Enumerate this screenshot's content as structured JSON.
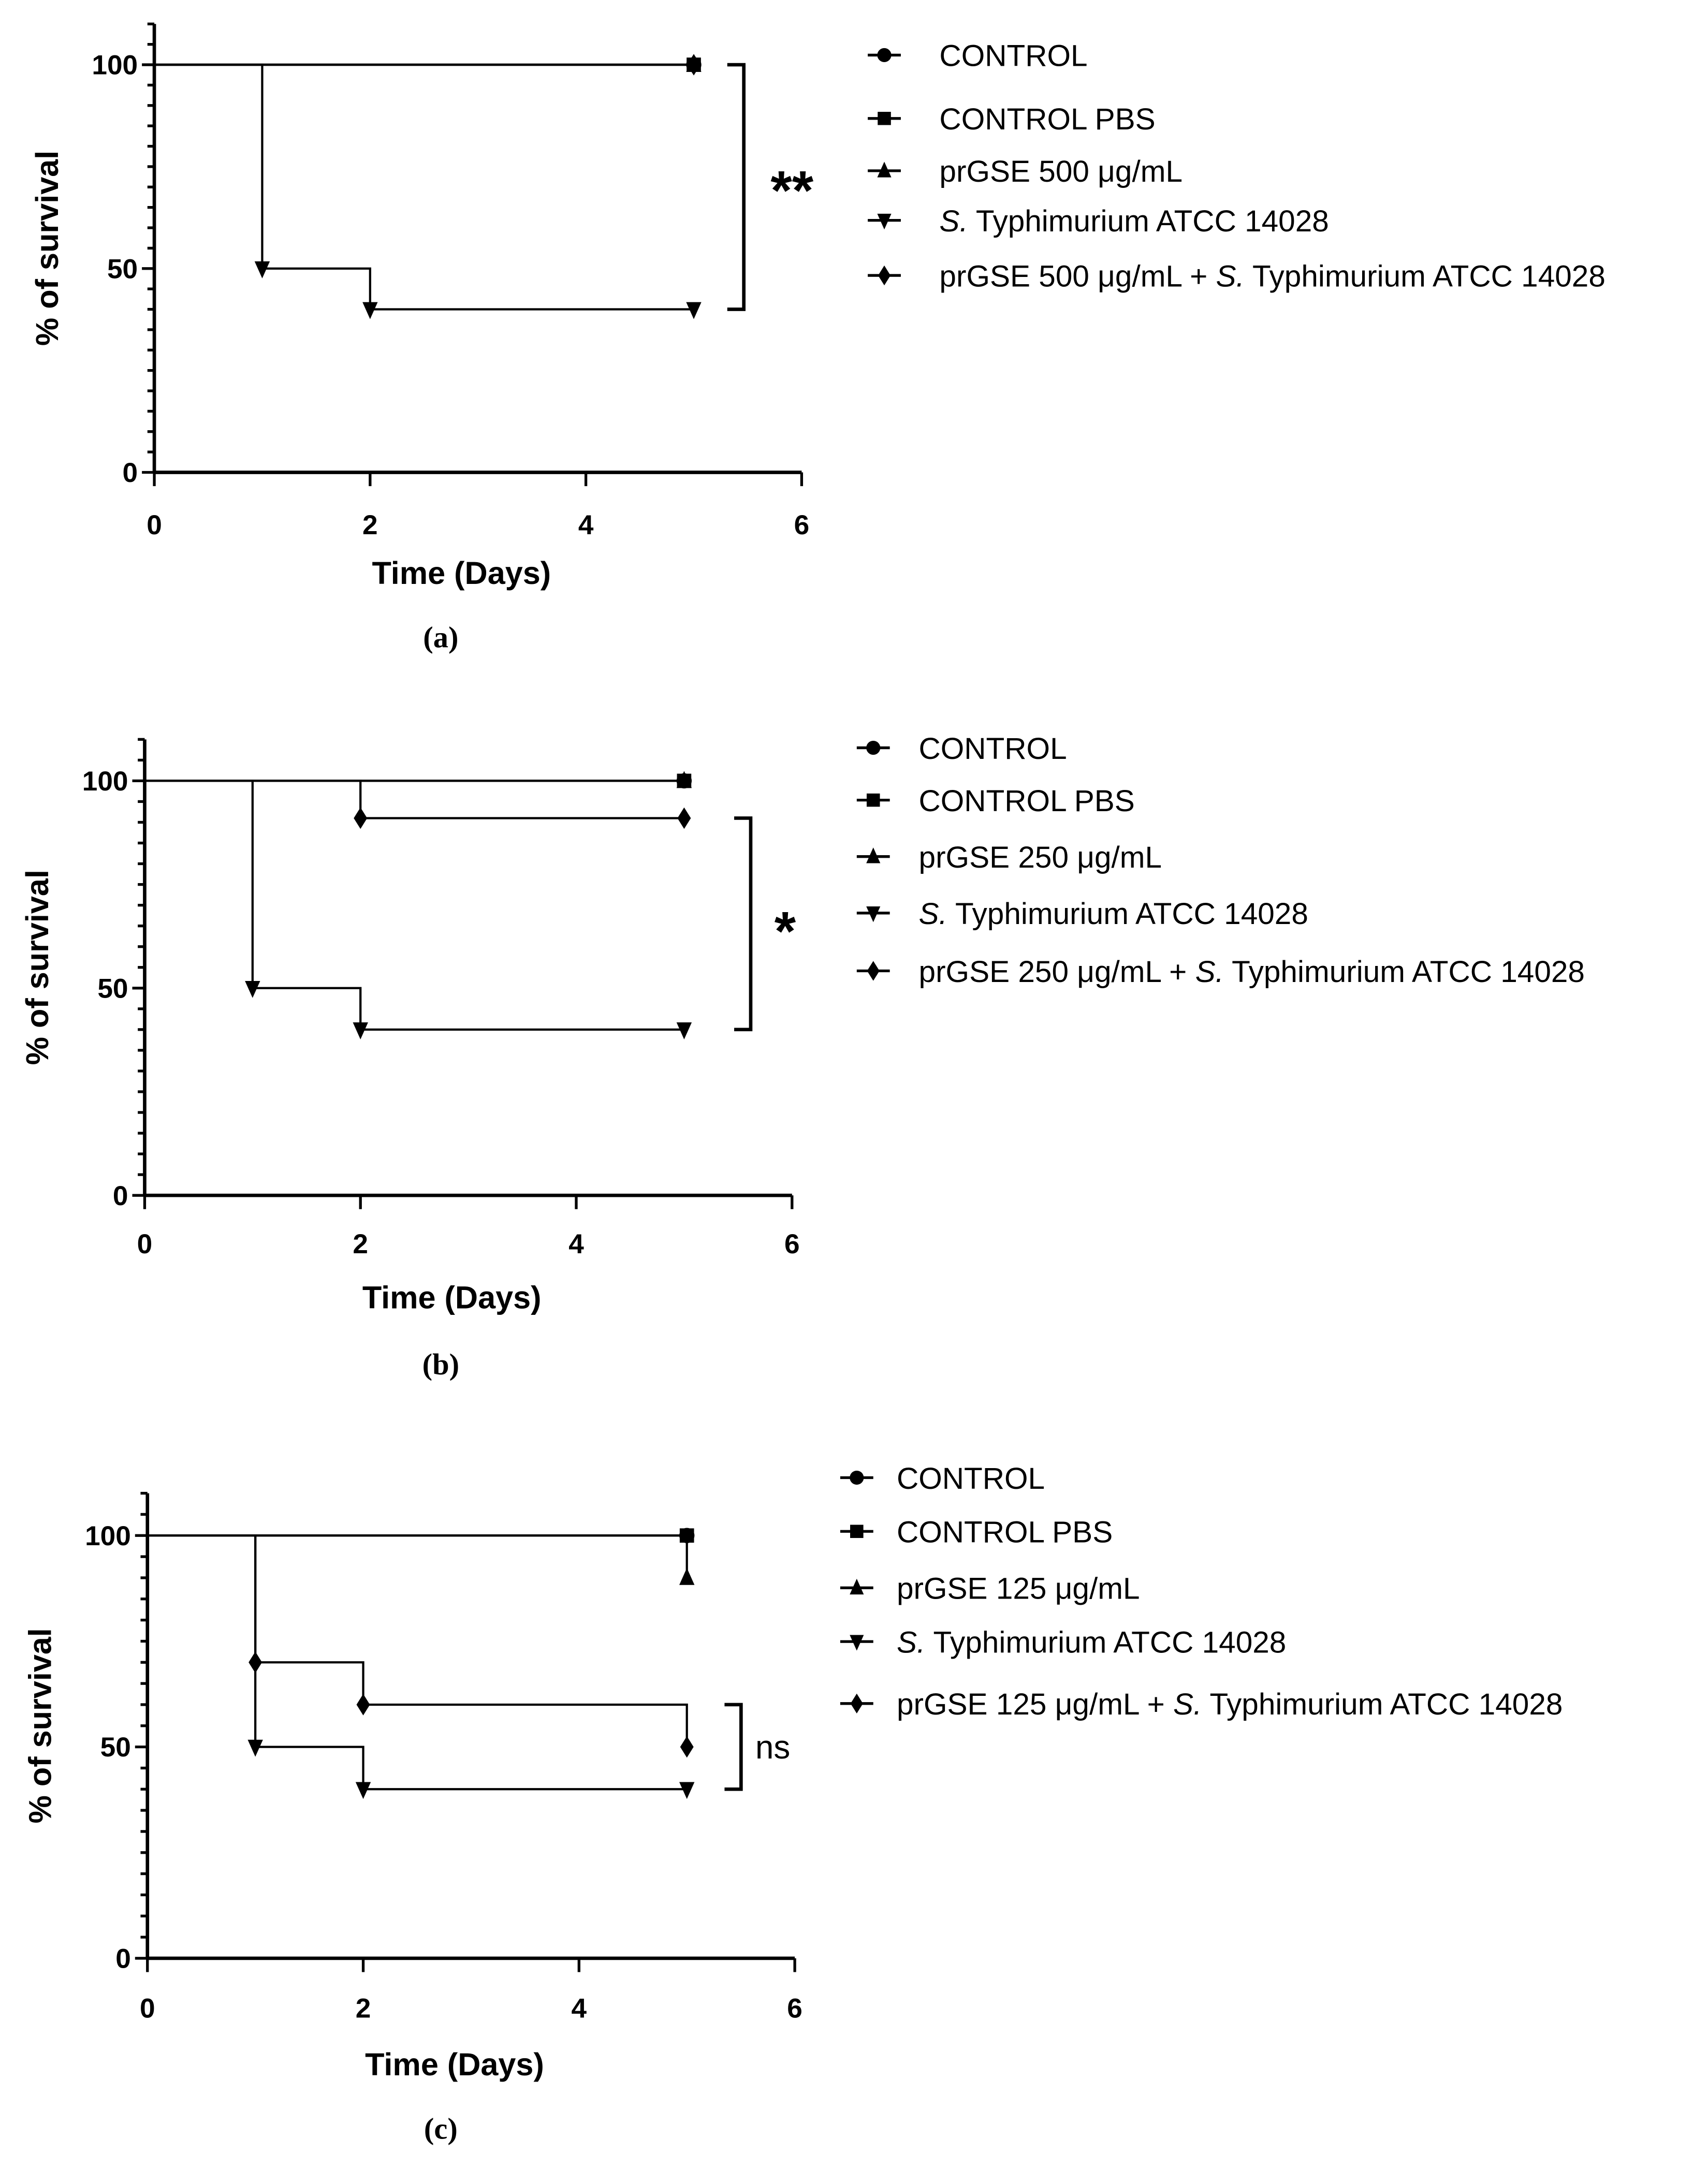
{
  "chart_data": [
    {
      "type": "line",
      "panel_label": "(a)",
      "xlabel": "Time (Days)",
      "ylabel": "% of survival",
      "xlim": [
        0,
        6
      ],
      "ylim": [
        0,
        110
      ],
      "xticks": [
        0,
        2,
        4,
        6
      ],
      "yticks": [
        0,
        50,
        100
      ],
      "grid": false,
      "legend_position": "right",
      "significance": {
        "label": "**",
        "between": [
          "S. Typhimurium ATCC 14028",
          "CONTROL PBS"
        ],
        "y_range": [
          40,
          100
        ]
      },
      "series": [
        {
          "name": "CONTROL",
          "marker": "circle",
          "x": [
            0,
            5
          ],
          "y": [
            100,
            100
          ]
        },
        {
          "name": "prGSE 500 μg/mL",
          "marker": "triangle-up",
          "x": [
            0,
            5
          ],
          "y": [
            100,
            100
          ]
        },
        {
          "name": "prGSE 500 μg/mL + S. Typhimurium ATCC 14028",
          "marker": "diamond",
          "x": [
            0,
            5
          ],
          "y": [
            100,
            100
          ]
        },
        {
          "name": "CONTROL PBS",
          "marker": "square",
          "x": [
            0,
            5
          ],
          "y": [
            100,
            100
          ]
        },
        {
          "name": "S. Typhimurium ATCC 14028",
          "marker": "triangle-down",
          "x": [
            0,
            1,
            2,
            5
          ],
          "y": [
            100,
            50,
            40,
            40
          ]
        }
      ],
      "legend_order": [
        "CONTROL",
        "CONTROL PBS",
        "prGSE 500 μg/mL",
        "S. Typhimurium ATCC 14028",
        "prGSE 500 μg/mL + S. Typhimurium ATCC 14028"
      ]
    },
    {
      "type": "line",
      "panel_label": "(b)",
      "xlabel": "Time (Days)",
      "ylabel": "% of survival",
      "xlim": [
        0,
        6
      ],
      "ylim": [
        0,
        110
      ],
      "xticks": [
        0,
        2,
        4,
        6
      ],
      "yticks": [
        0,
        50,
        100
      ],
      "grid": false,
      "legend_position": "right",
      "significance": {
        "label": "*",
        "between": [
          "S. Typhimurium ATCC 14028",
          "prGSE 250 μg/mL + S. Typhimurium ATCC 14028"
        ],
        "y_range": [
          40,
          91
        ]
      },
      "series": [
        {
          "name": "CONTROL",
          "marker": "circle",
          "x": [
            0,
            5
          ],
          "y": [
            100,
            100
          ]
        },
        {
          "name": "prGSE 250 μg/mL",
          "marker": "triangle-up",
          "x": [
            0,
            5
          ],
          "y": [
            100,
            100
          ]
        },
        {
          "name": "CONTROL PBS",
          "marker": "square",
          "x": [
            0,
            5
          ],
          "y": [
            100,
            100
          ]
        },
        {
          "name": "prGSE 250 μg/mL + S. Typhimurium ATCC 14028",
          "marker": "diamond",
          "x": [
            0,
            2,
            5
          ],
          "y": [
            100,
            91,
            91
          ]
        },
        {
          "name": "S. Typhimurium ATCC 14028",
          "marker": "triangle-down",
          "x": [
            0,
            1,
            2,
            5
          ],
          "y": [
            100,
            50,
            40,
            40
          ]
        }
      ],
      "legend_order": [
        "CONTROL",
        "CONTROL PBS",
        "prGSE 250 μg/mL",
        "S. Typhimurium ATCC 14028",
        "prGSE 250 μg/mL + S. Typhimurium ATCC 14028"
      ]
    },
    {
      "type": "line",
      "panel_label": "(c)",
      "xlabel": "Time (Days)",
      "ylabel": "% of survival",
      "xlim": [
        0,
        6
      ],
      "ylim": [
        0,
        110
      ],
      "xticks": [
        0,
        2,
        4,
        6
      ],
      "yticks": [
        0,
        50,
        100
      ],
      "grid": false,
      "legend_position": "right",
      "significance": {
        "label": "ns",
        "between": [
          "S. Typhimurium ATCC 14028",
          "prGSE 125 μg/mL + S. Typhimurium ATCC 14028"
        ],
        "y_range": [
          40,
          60
        ]
      },
      "series": [
        {
          "name": "CONTROL",
          "marker": "circle",
          "x": [
            0,
            5
          ],
          "y": [
            100,
            100
          ]
        },
        {
          "name": "prGSE 125 μg/mL",
          "marker": "triangle-up",
          "x": [
            0,
            5,
            5
          ],
          "y": [
            100,
            100,
            90
          ]
        },
        {
          "name": "CONTROL PBS",
          "marker": "square",
          "x": [
            0,
            5
          ],
          "y": [
            100,
            100
          ]
        },
        {
          "name": "prGSE 125 μg/mL + S. Typhimurium ATCC 14028",
          "marker": "diamond",
          "x": [
            0,
            1,
            2,
            5
          ],
          "y": [
            100,
            70,
            60,
            50
          ]
        },
        {
          "name": "S. Typhimurium ATCC 14028",
          "marker": "triangle-down",
          "x": [
            0,
            1,
            2,
            5
          ],
          "y": [
            100,
            50,
            40,
            40
          ]
        }
      ],
      "legend_order": [
        "CONTROL",
        "CONTROL PBS",
        "prGSE 125 μg/mL",
        "S. Typhimurium ATCC 14028",
        "prGSE 125 μg/mL + S. Typhimurium ATCC 14028"
      ]
    }
  ]
}
